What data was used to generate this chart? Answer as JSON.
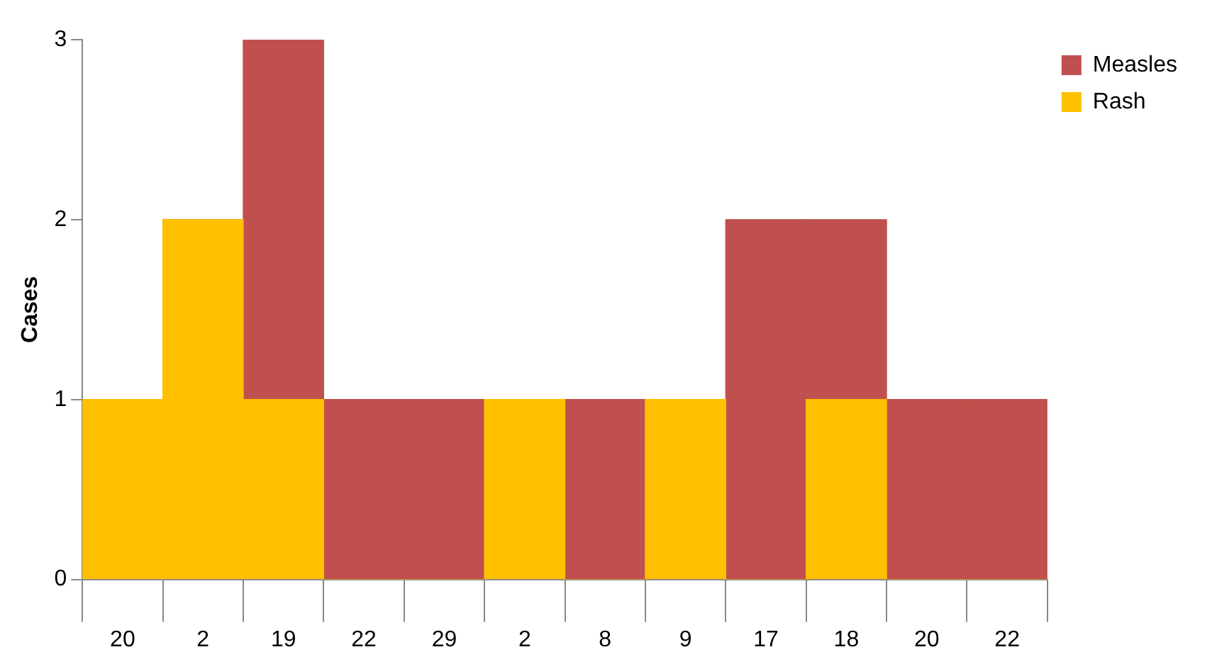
{
  "chart_data": {
    "type": "bar",
    "stacked": true,
    "ylabel": "Cases",
    "categories": [
      "20",
      "2",
      "19",
      "22",
      "29",
      "2",
      "8",
      "9",
      "17",
      "18",
      "20",
      "22"
    ],
    "series": [
      {
        "name": "Rash",
        "color": "#ffc000",
        "values": [
          1,
          2,
          1,
          0,
          0,
          1,
          0,
          1,
          0,
          1,
          0,
          0
        ]
      },
      {
        "name": "Measles",
        "color": "#c0504d",
        "values": [
          0,
          0,
          2,
          1,
          1,
          0,
          1,
          0,
          2,
          1,
          1,
          1
        ]
      }
    ],
    "ylim": [
      0,
      3
    ],
    "yticks": [
      0,
      1,
      2,
      3
    ],
    "grid": false,
    "legend": "top right"
  }
}
